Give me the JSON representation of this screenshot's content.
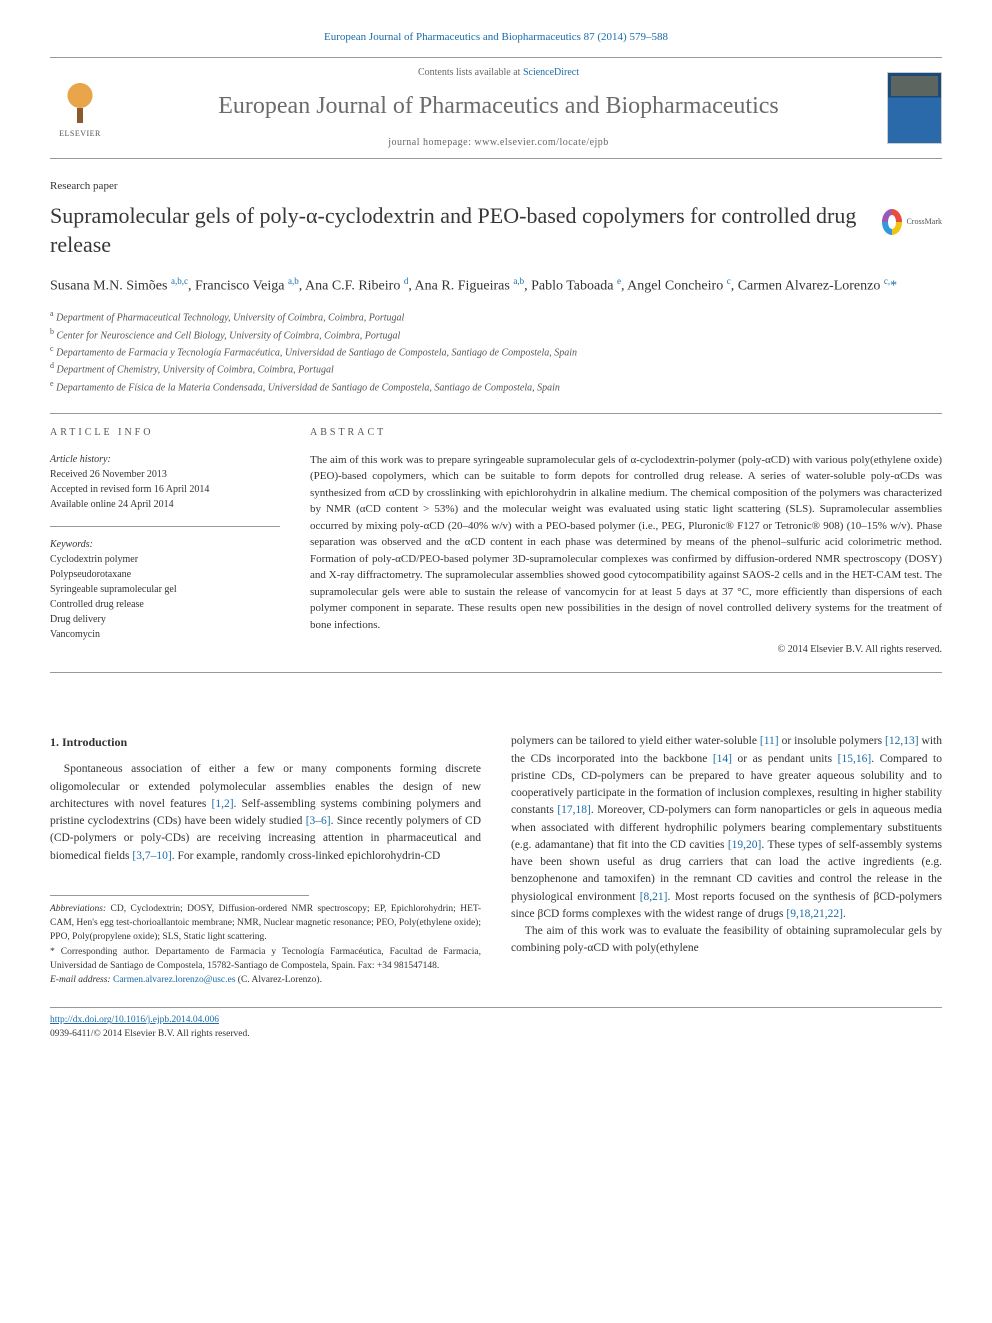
{
  "citation": "European Journal of Pharmaceutics and Biopharmaceutics 87 (2014) 579–588",
  "header": {
    "contents_prefix": "Contents lists available at ",
    "contents_link": "ScienceDirect",
    "journal_name": "European Journal of Pharmaceutics and Biopharmaceutics",
    "homepage_prefix": "journal homepage: ",
    "homepage_url": "www.elsevier.com/locate/ejpb",
    "publisher": "ELSEVIER"
  },
  "paper_type": "Research paper",
  "title": "Supramolecular gels of poly-α-cyclodextrin and PEO-based copolymers for controlled drug release",
  "crossmark_label": "CrossMark",
  "authors_html": "Susana M.N. Simões <span class='sup'>a,b,c</span>, Francisco Veiga <span class='sup'>a,b</span>, Ana C.F. Ribeiro <span class='sup'>d</span>, Ana R. Figueiras <span class='sup'>a,b</span>, Pablo Taboada <span class='sup'>e</span>, Angel Concheiro <span class='sup'>c</span>, Carmen Alvarez-Lorenzo <span class='sup'>c,</span><span class='corr'>*</span>",
  "affiliations": [
    {
      "sup": "a",
      "text": "Department of Pharmaceutical Technology, University of Coimbra, Coimbra, Portugal"
    },
    {
      "sup": "b",
      "text": "Center for Neuroscience and Cell Biology, University of Coimbra, Coimbra, Portugal"
    },
    {
      "sup": "c",
      "text": "Departamento de Farmacia y Tecnología Farmacéutica, Universidad de Santiago de Compostela, Santiago de Compostela, Spain"
    },
    {
      "sup": "d",
      "text": "Department of Chemistry, University of Coimbra, Coimbra, Portugal"
    },
    {
      "sup": "e",
      "text": "Departamento de Física de la Materia Condensada, Universidad de Santiago de Compostela, Santiago de Compostela, Spain"
    }
  ],
  "article_info": {
    "label": "ARTICLE INFO",
    "history_label": "Article history:",
    "received": "Received 26 November 2013",
    "accepted": "Accepted in revised form 16 April 2014",
    "online": "Available online 24 April 2014",
    "keywords_label": "Keywords:",
    "keywords": [
      "Cyclodextrin polymer",
      "Polypseudorotaxane",
      "Syringeable supramolecular gel",
      "Controlled drug release",
      "Drug delivery",
      "Vancomycin"
    ]
  },
  "abstract": {
    "label": "ABSTRACT",
    "text": "The aim of this work was to prepare syringeable supramolecular gels of α-cyclodextrin-polymer (poly-αCD) with various poly(ethylene oxide) (PEO)-based copolymers, which can be suitable to form depots for controlled drug release. A series of water-soluble poly-αCDs was synthesized from αCD by crosslinking with epichlorohydrin in alkaline medium. The chemical composition of the polymers was characterized by NMR (αCD content > 53%) and the molecular weight was evaluated using static light scattering (SLS). Supramolecular assemblies occurred by mixing poly-αCD (20–40% w/v) with a PEO-based polymer (i.e., PEG, Pluronic® F127 or Tetronic® 908) (10–15% w/v). Phase separation was observed and the αCD content in each phase was determined by means of the phenol–sulfuric acid colorimetric method. Formation of poly-αCD/PEO-based polymer 3D-supramolecular complexes was confirmed by diffusion-ordered NMR spectroscopy (DOSY) and X-ray diffractometry. The supramolecular assemblies showed good cytocompatibility against SAOS-2 cells and in the HET-CAM test. The supramolecular gels were able to sustain the release of vancomycin for at least 5 days at 37 °C, more efficiently than dispersions of each polymer component in separate. These results open new possibilities in the design of novel controlled delivery systems for the treatment of bone infections.",
    "copyright": "© 2014 Elsevier B.V. All rights reserved."
  },
  "body": {
    "section_title": "1. Introduction",
    "left_para": "Spontaneous association of either a few or many components forming discrete oligomolecular or extended polymolecular assemblies enables the design of new architectures with novel features [1,2]. Self-assembling systems combining polymers and pristine cyclodextrins (CDs) have been widely studied [3–6]. Since recently polymers of CD (CD-polymers or poly-CDs) are receiving increasing attention in pharmaceutical and biomedical fields [3,7–10]. For example, randomly cross-linked epichlorohydrin-CD",
    "right_para": "polymers can be tailored to yield either water-soluble [11] or insoluble polymers [12,13] with the CDs incorporated into the backbone [14] or as pendant units [15,16]. Compared to pristine CDs, CD-polymers can be prepared to have greater aqueous solubility and to cooperatively participate in the formation of inclusion complexes, resulting in higher stability constants [17,18]. Moreover, CD-polymers can form nanoparticles or gels in aqueous media when associated with different hydrophilic polymers bearing complementary substituents (e.g. adamantane) that fit into the CD cavities [19,20]. These types of self-assembly systems have been shown useful as drug carriers that can load the active ingredients (e.g. benzophenone and tamoxifen) in the remnant CD cavities and control the release in the physiological environment [8,21]. Most reports focused on the synthesis of βCD-polymers since βCD forms complexes with the widest range of drugs [9,18,21,22].",
    "right_para2": "The aim of this work was to evaluate the feasibility of obtaining supramolecular gels by combining poly-αCD with poly(ethylene"
  },
  "footnotes": {
    "abbrev_label": "Abbreviations:",
    "abbrev_text": " CD, Cyclodextrin; DOSY, Diffusion-ordered NMR spectroscopy; EP, Epichlorohydrin; HET-CAM, Hen's egg test-chorioallantoic membrane; NMR, Nuclear magnetic resonance; PEO, Poly(ethylene oxide); PPO, Poly(propylene oxide); SLS, Static light scattering.",
    "corr_label": "* Corresponding author. ",
    "corr_text": "Departamento de Farmacia y Tecnología Farmacéutica, Facultad de Farmacia, Universidad de Santiago de Compostela, 15782-Santiago de Compostela, Spain. Fax: +34 981547148.",
    "email_label": "E-mail address: ",
    "email": "Carmen.alvarez.lorenzo@usc.es",
    "email_suffix": " (C. Alvarez-Lorenzo)."
  },
  "bottom": {
    "doi": "http://dx.doi.org/10.1016/j.ejpb.2014.04.006",
    "issn_line": "0939-6411/© 2014 Elsevier B.V. All rights reserved."
  },
  "colors": {
    "link": "#1a6ba8",
    "text": "#333333",
    "journal_title": "#6b6b6b",
    "border": "#999999"
  },
  "typography": {
    "body_font": "Georgia, 'Times New Roman', serif",
    "title_size_pt": 22,
    "journal_title_size_pt": 24,
    "body_size_pt": 11.5,
    "abstract_size_pt": 11,
    "small_size_pt": 10
  },
  "refs": {
    "r1": "[1,2]",
    "r2": "[3–6]",
    "r3": "[3,7–10]",
    "r4": "[11]",
    "r5": "[12,13]",
    "r6": "[14]",
    "r7": "[15,16]",
    "r8": "[17,18]",
    "r9": "[19,20]",
    "r10": "[8,21]",
    "r11": "[9,18,21,22]"
  }
}
